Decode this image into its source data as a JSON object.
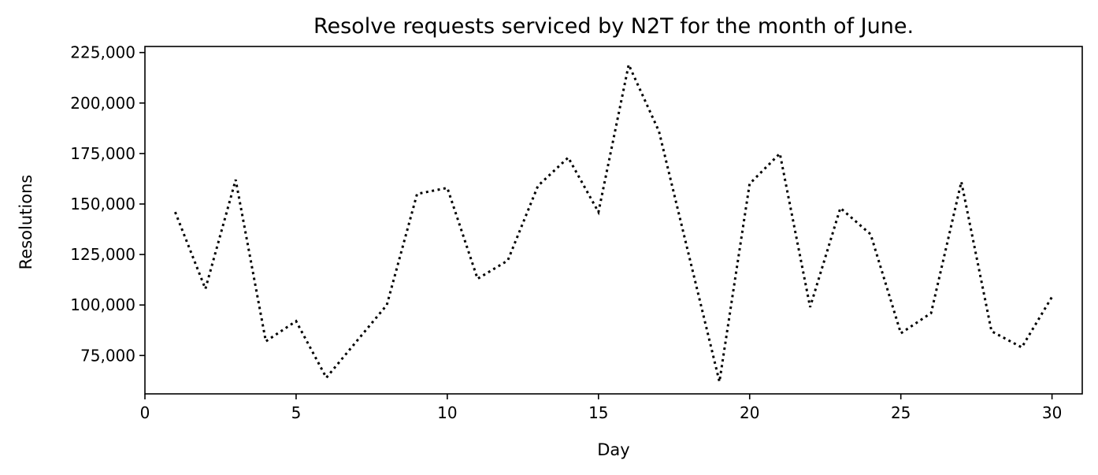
{
  "chart_data": {
    "type": "line",
    "title": "Resolve requests serviced by N2T for the month of June.",
    "xlabel": "Day",
    "ylabel": "Resolutions",
    "x_ticks": [
      0,
      5,
      10,
      15,
      20,
      25,
      30
    ],
    "x_tick_labels": [
      "0",
      "5",
      "10",
      "15",
      "20",
      "25",
      "30"
    ],
    "y_ticks": [
      75000,
      100000,
      125000,
      150000,
      175000,
      200000,
      225000
    ],
    "y_tick_labels": [
      "75,000",
      "100,000",
      "125,000",
      "150,000",
      "175,000",
      "200,000",
      "225,000"
    ],
    "xlim": [
      0,
      31
    ],
    "ylim": [
      56000,
      228000
    ],
    "grid": false,
    "line_style": "dotted",
    "line_color": "#000000",
    "series": [
      {
        "x": [
          1,
          2,
          3,
          4,
          5,
          6,
          7,
          8,
          9,
          10,
          11,
          12,
          13,
          14,
          15,
          16,
          17,
          18,
          19,
          20,
          21,
          22,
          23,
          24,
          25,
          26,
          27,
          28,
          29,
          30
        ],
        "values": [
          146000,
          108000,
          162000,
          82000,
          92000,
          64000,
          82000,
          100000,
          155000,
          158000,
          113000,
          122000,
          159000,
          173000,
          146000,
          219000,
          186000,
          124000,
          62000,
          160000,
          175000,
          99000,
          148000,
          135000,
          86000,
          96000,
          161000,
          87000,
          79000,
          104000
        ]
      }
    ]
  }
}
